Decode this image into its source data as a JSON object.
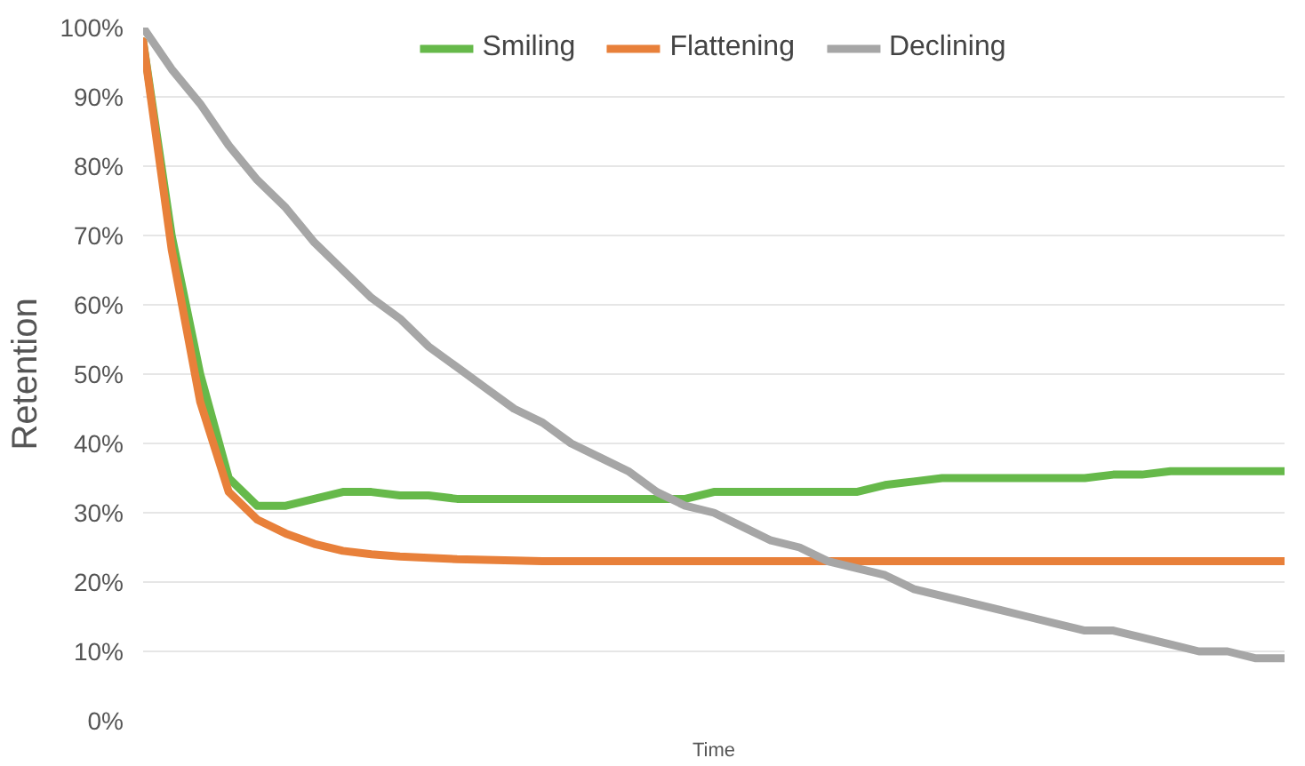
{
  "chart_data": {
    "type": "line",
    "xlabel": "Time",
    "ylabel": "Retention",
    "categories": [
      null,
      null,
      null,
      null,
      null,
      null,
      null,
      null,
      null,
      null,
      null,
      null,
      null,
      null,
      null,
      null,
      null,
      null,
      null,
      null,
      null,
      null,
      null,
      null,
      null,
      null,
      null,
      null,
      null,
      null,
      null,
      null,
      null,
      null,
      null,
      null,
      null,
      null,
      null,
      null,
      null
    ],
    "series": [
      {
        "name": "Smiling",
        "color": "#66b94a",
        "values": [
          98,
          70,
          50,
          35,
          31,
          31,
          32,
          33,
          33,
          32.5,
          32.5,
          32,
          32,
          32,
          32,
          32,
          32,
          32,
          32,
          32,
          33,
          33,
          33,
          33,
          33,
          33,
          34,
          34.5,
          35,
          35,
          35,
          35,
          35,
          35,
          35.5,
          35.5,
          36,
          36,
          36,
          36,
          36
        ]
      },
      {
        "name": "Flattening",
        "color": "#e8803a",
        "values": [
          98,
          68,
          46,
          33,
          29,
          27,
          25.5,
          24.5,
          24,
          23.7,
          23.5,
          23.3,
          23.2,
          23.1,
          23,
          23,
          23,
          23,
          23,
          23,
          23,
          23,
          23,
          23,
          23,
          23,
          23,
          23,
          23,
          23,
          23,
          23,
          23,
          23,
          23,
          23,
          23,
          23,
          23,
          23,
          23
        ]
      },
      {
        "name": "Declining",
        "color": "#a6a6a6",
        "values": [
          100,
          94,
          89,
          83,
          78,
          74,
          69,
          65,
          61,
          58,
          54,
          51,
          48,
          45,
          43,
          40,
          38,
          36,
          33,
          31,
          30,
          28,
          26,
          25,
          23,
          22,
          21,
          19,
          18,
          17,
          16,
          15,
          14,
          13,
          13,
          12,
          11,
          10,
          10,
          9,
          9
        ]
      }
    ],
    "ylim": [
      0,
      100
    ],
    "yticks": [
      {
        "value": 0,
        "label": "0%"
      },
      {
        "value": 10,
        "label": "10%"
      },
      {
        "value": 20,
        "label": "20%"
      },
      {
        "value": 30,
        "label": "30%"
      },
      {
        "value": 40,
        "label": "40%"
      },
      {
        "value": 50,
        "label": "50%"
      },
      {
        "value": 60,
        "label": "60%"
      },
      {
        "value": 70,
        "label": "70%"
      },
      {
        "value": 80,
        "label": "80%"
      },
      {
        "value": 90,
        "label": "90%"
      },
      {
        "value": 100,
        "label": "100%"
      }
    ],
    "grid": "y",
    "legend": "top",
    "tick_labels": "y",
    "line_style": "solid",
    "marker": "none"
  }
}
